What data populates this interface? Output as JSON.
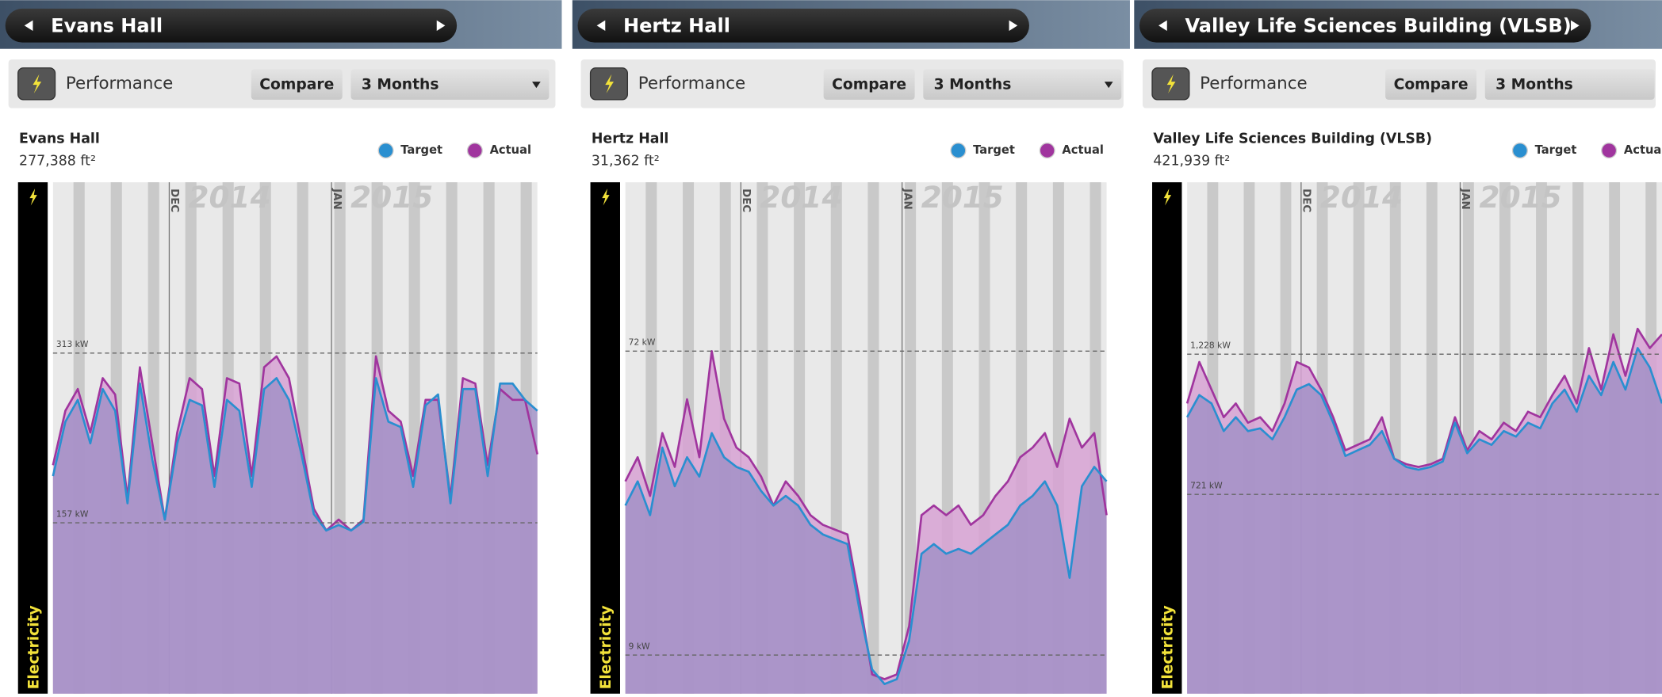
{
  "panels": [
    {
      "title": "Evans Hall",
      "tab": "Performance",
      "compare": "Compare",
      "period": "3 Months",
      "building": "Evans Hall",
      "area": "277,388 ft²",
      "chart": {
        "type": "area",
        "axis_label": "Electricity",
        "months": [
          "DEC",
          "JAN"
        ],
        "years": [
          "2014",
          "2015"
        ],
        "ylim": [
          0,
          470
        ],
        "yticks": [
          {
            "value": 157,
            "label": "157 kW"
          },
          {
            "value": 313,
            "label": "313 kW"
          }
        ],
        "series": [
          {
            "name": "Target",
            "color": "#2a8fd0",
            "values": [
              200,
              250,
              270,
              230,
              280,
              260,
              175,
              285,
              215,
              160,
              230,
              270,
              265,
              190,
              270,
              260,
              190,
              280,
              290,
              270,
              220,
              165,
              150,
              155,
              150,
              158,
              290,
              250,
              245,
              190,
              265,
              275,
              175,
              280,
              280,
              200,
              285,
              285,
              270,
              260
            ]
          },
          {
            "name": "Actual",
            "color": "#a0359e",
            "values": [
              210,
              260,
              280,
              240,
              290,
              275,
              180,
              300,
              230,
              160,
              240,
              290,
              280,
              200,
              290,
              285,
              200,
              300,
              310,
              290,
              230,
              170,
              150,
              160,
              150,
              160,
              310,
              260,
              250,
              200,
              270,
              270,
              180,
              290,
              285,
              210,
              280,
              270,
              270,
              220
            ]
          }
        ]
      }
    },
    {
      "title": "Hertz Hall",
      "tab": "Performance",
      "compare": "Compare",
      "period": "3 Months",
      "building": "Hertz Hall",
      "area": "31,362 ft²",
      "chart": {
        "type": "area",
        "axis_label": "Electricity",
        "months": [
          "DEC",
          "JAN"
        ],
        "years": [
          "2014",
          "2015"
        ],
        "ylim": [
          1,
          107
        ],
        "yticks": [
          {
            "value": 9,
            "label": "9 kW"
          },
          {
            "value": 72,
            "label": "72 kW"
          }
        ],
        "series": [
          {
            "name": "Target",
            "color": "#2a8fd0",
            "values": [
              40,
              45,
              38,
              52,
              44,
              50,
              46,
              55,
              50,
              48,
              47,
              43,
              40,
              42,
              40,
              36,
              34,
              33,
              32,
              18,
              6,
              3,
              4,
              12,
              30,
              32,
              30,
              31,
              30,
              32,
              34,
              36,
              40,
              42,
              45,
              40,
              25,
              44,
              48,
              45
            ]
          },
          {
            "name": "Actual",
            "color": "#a0359e",
            "values": [
              45,
              50,
              42,
              55,
              48,
              62,
              50,
              72,
              58,
              52,
              50,
              46,
              40,
              45,
              42,
              38,
              36,
              35,
              34,
              20,
              5,
              4,
              5,
              15,
              38,
              40,
              38,
              40,
              36,
              38,
              42,
              45,
              50,
              52,
              55,
              48,
              58,
              52,
              55,
              38
            ]
          }
        ]
      }
    },
    {
      "title": "Valley Life Sciences Building (VLSB)",
      "tab": "Performance",
      "compare": "Compare",
      "period": "3 Months",
      "building": "Valley Life Sciences Building (VLSB)",
      "area": "421,939 ft²",
      "chart": {
        "type": "area",
        "axis_label": "Electricity",
        "months": [
          "DEC",
          "JAN"
        ],
        "years": [
          "2014",
          "2015"
        ],
        "ylim": [
          0,
          1850
        ],
        "yticks": [
          {
            "value": 721,
            "label": "721 kW"
          },
          {
            "value": 1228,
            "label": "1,228 kW"
          }
        ],
        "series": [
          {
            "name": "Target",
            "color": "#2a8fd0",
            "values": [
              1000,
              1080,
              1050,
              950,
              1000,
              950,
              960,
              920,
              1000,
              1100,
              1120,
              1080,
              980,
              860,
              880,
              900,
              950,
              850,
              820,
              810,
              820,
              840,
              980,
              870,
              920,
              900,
              950,
              930,
              980,
              960,
              1050,
              1100,
              1020,
              1150,
              1080,
              1200,
              1100,
              1250,
              1180,
              1050
            ]
          },
          {
            "name": "Actual",
            "color": "#a0359e",
            "values": [
              1050,
              1200,
              1100,
              1000,
              1050,
              980,
              1000,
              950,
              1050,
              1200,
              1180,
              1100,
              1000,
              880,
              900,
              920,
              1000,
              850,
              830,
              820,
              830,
              850,
              1000,
              880,
              950,
              920,
              980,
              950,
              1020,
              1000,
              1080,
              1150,
              1050,
              1250,
              1100,
              1300,
              1150,
              1320,
              1250,
              1300
            ]
          }
        ]
      }
    }
  ]
}
